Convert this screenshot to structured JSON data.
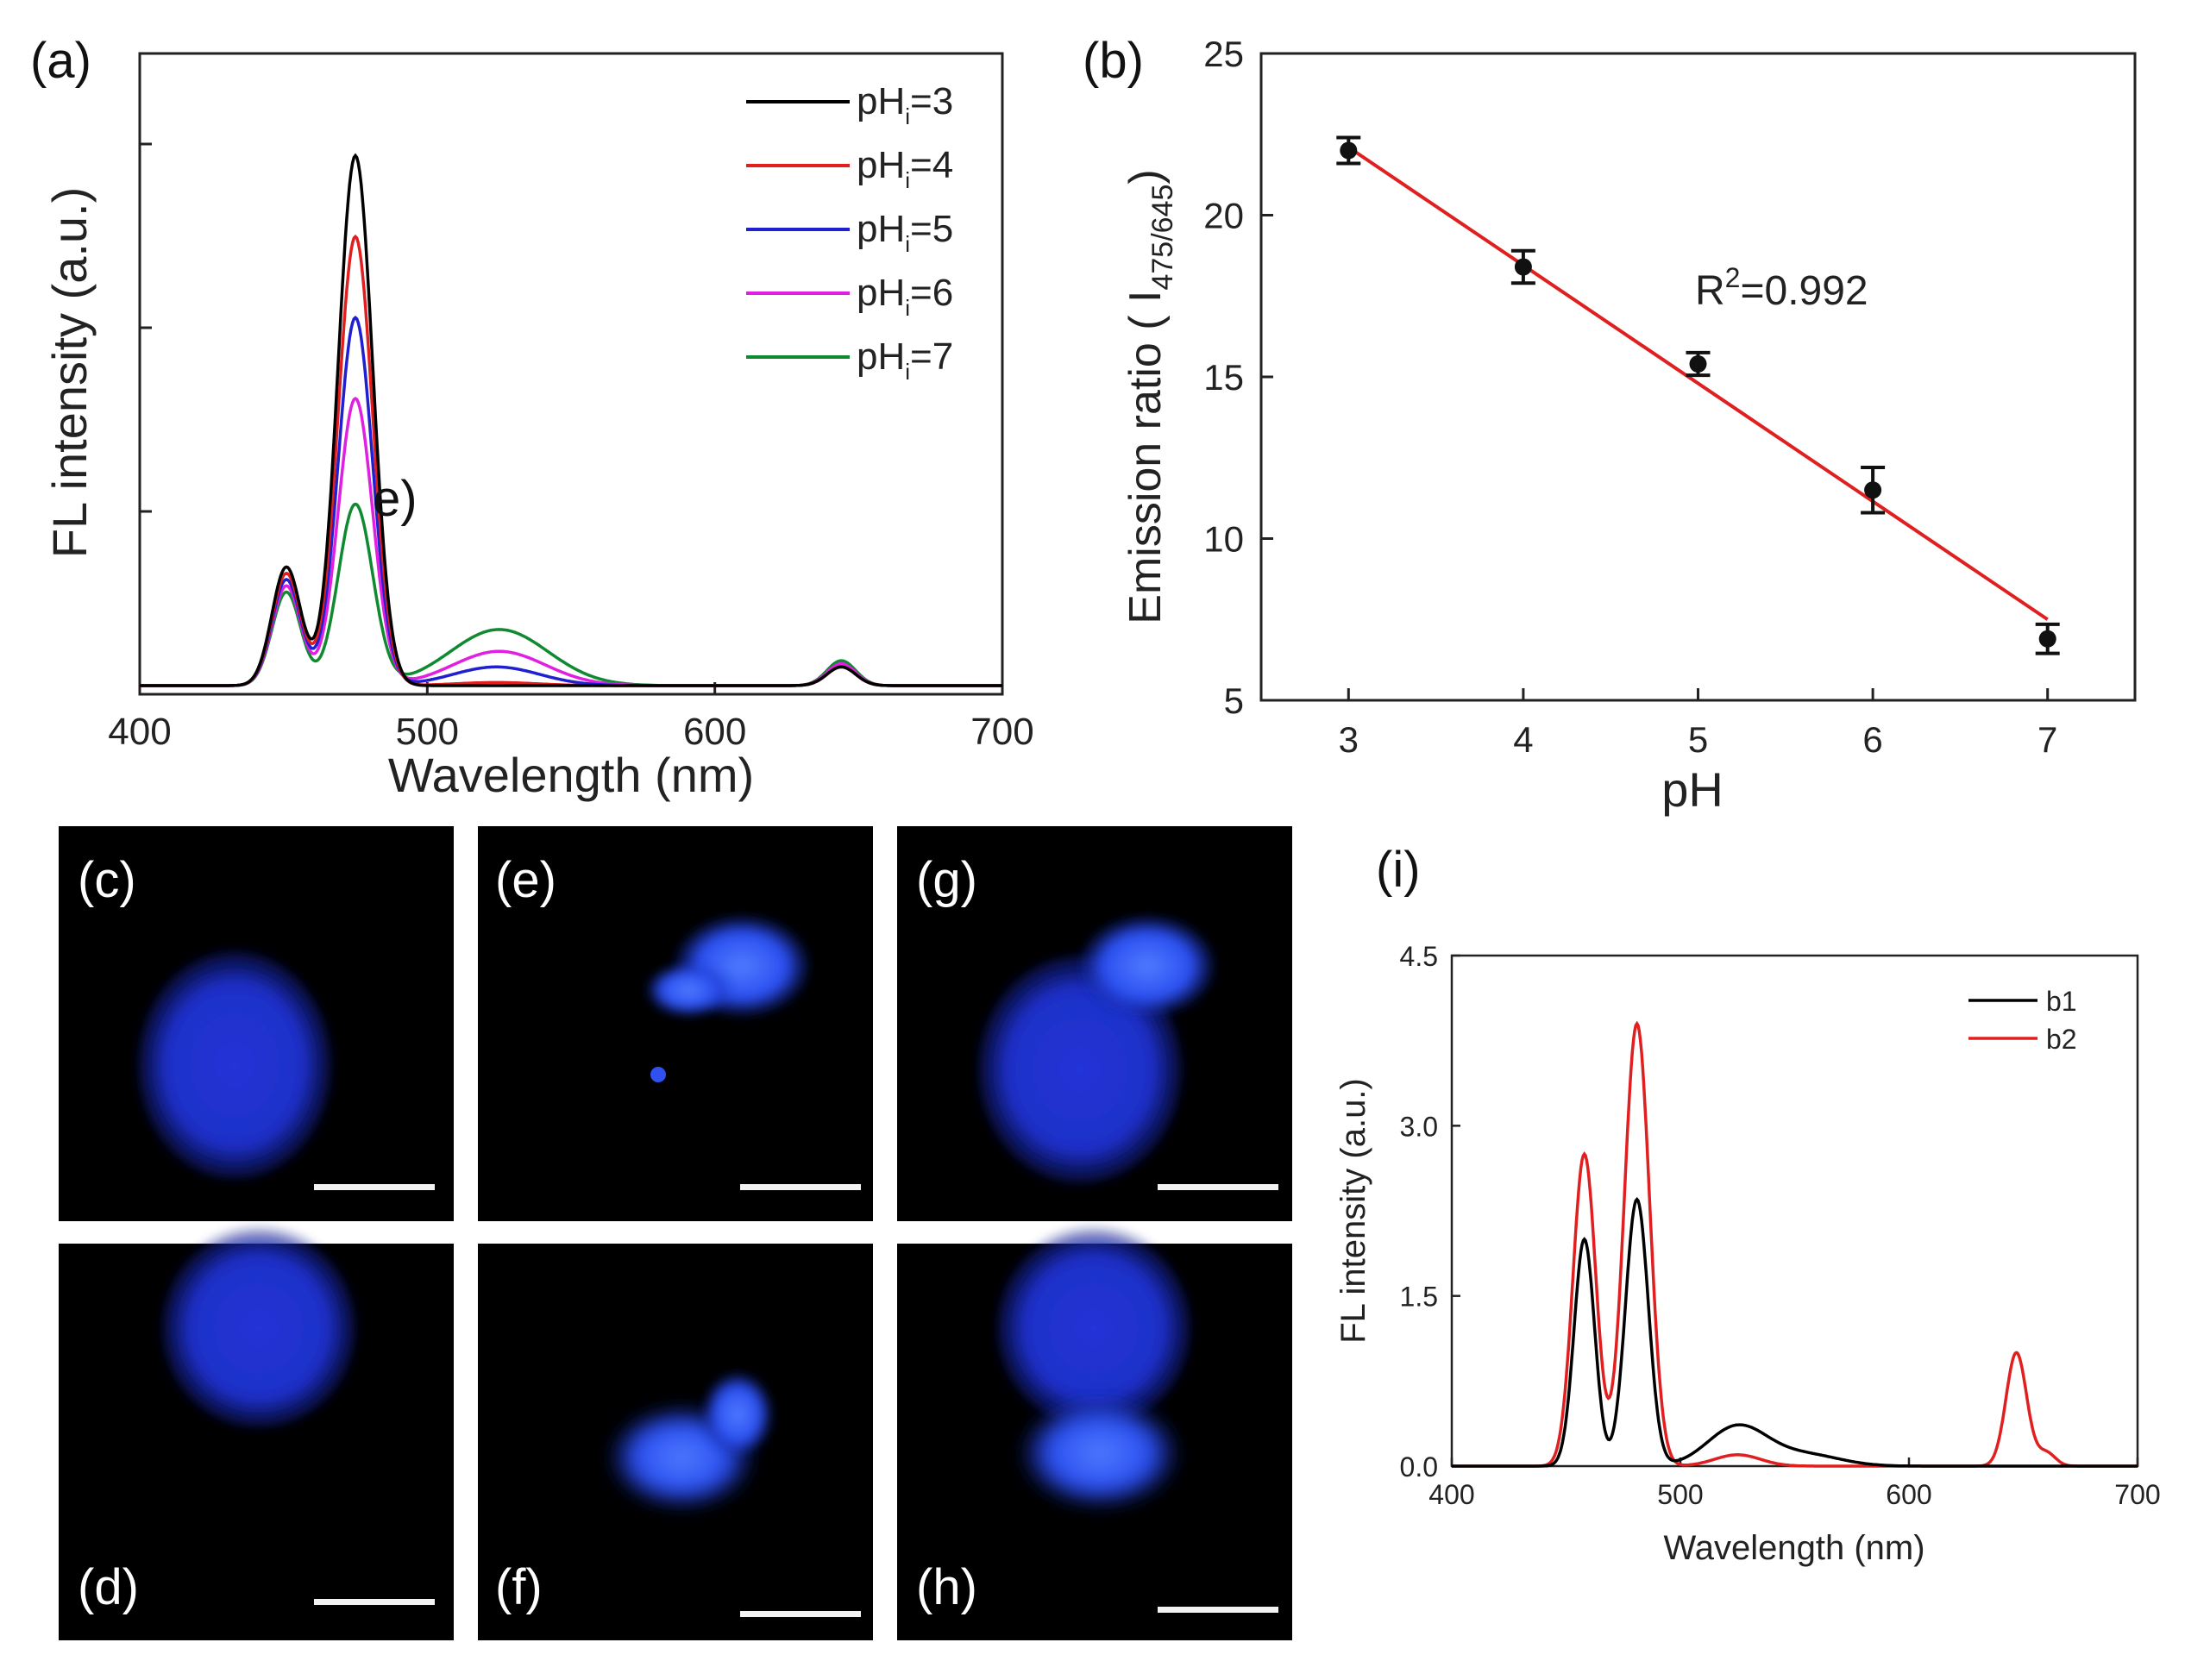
{
  "figure_labels": {
    "a": "(a)",
    "b": "(b)",
    "c": "(c)",
    "d": "(d)",
    "e": "(e)",
    "f": "(f)",
    "g": "(g)",
    "h": "(h)",
    "i": "(i)",
    "a_overlay": "e)"
  },
  "colors": {
    "black": "#000000",
    "red": "#e02020",
    "blue": "#2020d0",
    "magenta": "#e020e0",
    "green": "#108a30",
    "micro_blue": "#1f2fd8"
  },
  "chart_data": [
    {
      "id": "a",
      "type": "line",
      "title": "",
      "xlabel": "Wavelength (nm)",
      "ylabel": "FL intensity (a.u.)",
      "xlim": [
        400,
        700
      ],
      "ylim": [
        0,
        1
      ],
      "xticks": [
        400,
        500,
        600,
        700
      ],
      "xtick_labels": [
        "400",
        "500",
        "600",
        "700"
      ],
      "legend_position": "top-right",
      "series": [
        {
          "name": "pH",
          "sub": "i",
          "tail": "=3",
          "color": "#000000",
          "peaks": [
            {
              "c": 451,
              "h": 0.19,
              "w": 5
            },
            {
              "c": 475,
              "h": 0.85,
              "w": 6
            },
            {
              "c": 644,
              "h": 0.03,
              "w": 5
            }
          ]
        },
        {
          "name": "pH",
          "sub": "i",
          "tail": "=4",
          "color": "#e02020",
          "peaks": [
            {
              "c": 451,
              "h": 0.18,
              "w": 5
            },
            {
              "c": 475,
              "h": 0.72,
              "w": 6
            },
            {
              "c": 524,
              "h": 0.005,
              "w": 14
            },
            {
              "c": 644,
              "h": 0.03,
              "w": 5
            }
          ]
        },
        {
          "name": "pH",
          "sub": "i",
          "tail": "=5",
          "color": "#2020d0",
          "peaks": [
            {
              "c": 451,
              "h": 0.17,
              "w": 5
            },
            {
              "c": 475,
              "h": 0.59,
              "w": 6
            },
            {
              "c": 524,
              "h": 0.03,
              "w": 15
            },
            {
              "c": 644,
              "h": 0.03,
              "w": 5
            }
          ]
        },
        {
          "name": "pH",
          "sub": "i",
          "tail": "=6",
          "color": "#e020e0",
          "peaks": [
            {
              "c": 451,
              "h": 0.16,
              "w": 5
            },
            {
              "c": 475,
              "h": 0.46,
              "w": 6
            },
            {
              "c": 525,
              "h": 0.055,
              "w": 16
            },
            {
              "c": 644,
              "h": 0.035,
              "w": 5
            }
          ]
        },
        {
          "name": "pH",
          "sub": "i",
          "tail": "=7",
          "color": "#108a30",
          "peaks": [
            {
              "c": 451,
              "h": 0.15,
              "w": 5
            },
            {
              "c": 475,
              "h": 0.29,
              "w": 6
            },
            {
              "c": 525,
              "h": 0.09,
              "w": 17
            },
            {
              "c": 644,
              "h": 0.04,
              "w": 5
            }
          ]
        }
      ]
    },
    {
      "id": "b",
      "type": "scatter",
      "title": "",
      "xlabel": "pH",
      "ylabel_main": "Emission ratio ( I",
      "ylabel_sub": "475/645",
      "ylabel_tail": ")",
      "xlim": [
        2.5,
        7.5
      ],
      "ylim": [
        5,
        25
      ],
      "xticks": [
        3,
        4,
        5,
        6,
        7
      ],
      "xtick_labels": [
        "3",
        "4",
        "5",
        "6",
        "7"
      ],
      "yticks": [
        5,
        10,
        15,
        20,
        25
      ],
      "ytick_labels": [
        "5",
        "10",
        "15",
        "20",
        "25"
      ],
      "points": [
        {
          "x": 3,
          "y": 22.0,
          "err": 0.4
        },
        {
          "x": 4,
          "y": 18.4,
          "err": 0.5
        },
        {
          "x": 5,
          "y": 15.4,
          "err": 0.35
        },
        {
          "x": 6,
          "y": 11.5,
          "err": 0.7
        },
        {
          "x": 7,
          "y": 6.9,
          "err": 0.45
        }
      ],
      "fit_line": {
        "x": [
          3,
          7
        ],
        "y": [
          22.1,
          7.5
        ],
        "color": "#e02020"
      },
      "annotation": {
        "base": "R",
        "sup": "2",
        "tail": "=0.992"
      }
    },
    {
      "id": "i",
      "type": "line",
      "title": "",
      "xlabel": "Wavelength (nm)",
      "ylabel": "FL intensity (a.u.)",
      "xlim": [
        400,
        700
      ],
      "ylim": [
        0,
        4.5
      ],
      "xticks": [
        400,
        500,
        600,
        700
      ],
      "xtick_labels": [
        "400",
        "500",
        "600",
        "700"
      ],
      "yticks": [
        0,
        1.5,
        3.0,
        4.5
      ],
      "ytick_labels": [
        "0.0",
        "1.5",
        "3.0",
        "4.5"
      ],
      "legend_position": "top-right",
      "series": [
        {
          "name": "b1",
          "color": "#000000",
          "peaks": [
            {
              "c": 458,
              "h": 2.0,
              "w": 4.5
            },
            {
              "c": 481,
              "h": 2.35,
              "w": 5
            },
            {
              "c": 525,
              "h": 0.35,
              "w": 13
            },
            {
              "c": 555,
              "h": 0.1,
              "w": 15
            }
          ]
        },
        {
          "name": "b2",
          "color": "#e02020",
          "peaks": [
            {
              "c": 458,
              "h": 2.75,
              "w": 5
            },
            {
              "c": 481,
              "h": 3.9,
              "w": 5.5
            },
            {
              "c": 525,
              "h": 0.1,
              "w": 10
            },
            {
              "c": 647,
              "h": 1.0,
              "w": 4.5
            },
            {
              "c": 660,
              "h": 0.12,
              "w": 4
            }
          ]
        }
      ]
    }
  ]
}
